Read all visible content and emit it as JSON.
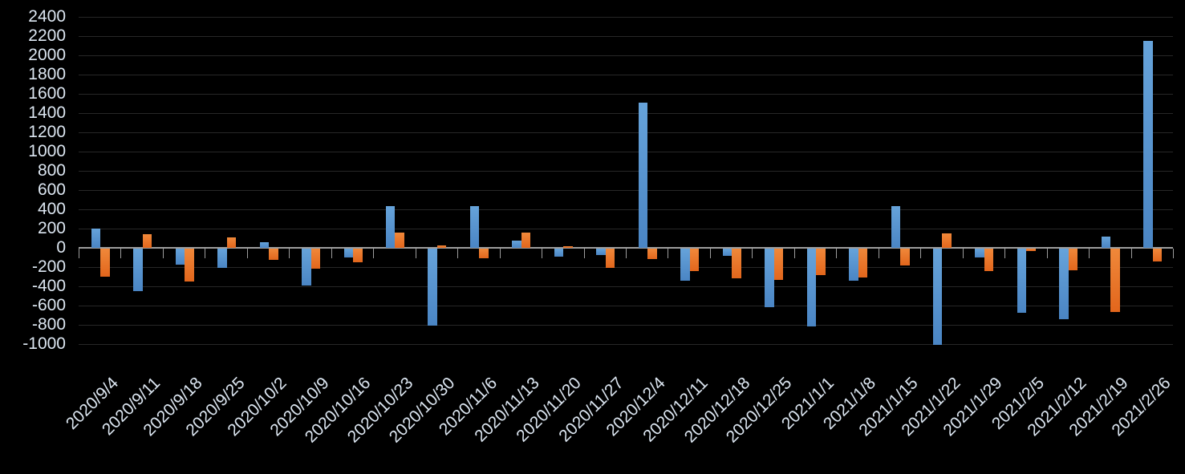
{
  "chart_data": {
    "type": "bar",
    "title": "",
    "xlabel": "",
    "ylabel": "",
    "background_color": "#000000",
    "grid": true,
    "legend": "none",
    "ylim": [
      -1000,
      2400
    ],
    "ytick_step": 200,
    "y_tick_labels": [
      "2400",
      "2200",
      "2000",
      "1800",
      "1600",
      "1400",
      "1200",
      "1000",
      "800",
      "600",
      "400",
      "200",
      "0",
      "-200",
      "-400",
      "-600",
      "-800",
      "-1000"
    ],
    "categories": [
      "2020/9/4",
      "2020/9/11",
      "2020/9/18",
      "2020/9/25",
      "2020/10/2",
      "2020/10/9",
      "2020/10/16",
      "2020/10/23",
      "2020/10/30",
      "2020/11/6",
      "2020/11/13",
      "2020/11/20",
      "2020/11/27",
      "2020/12/4",
      "2020/12/11",
      "2020/12/18",
      "2020/12/25",
      "2021/1/1",
      "2021/1/8",
      "2021/1/15",
      "2021/1/22",
      "2021/1/29",
      "2021/2/5",
      "2021/2/12",
      "2021/2/19",
      "2021/2/26"
    ],
    "series": [
      {
        "name": "blue",
        "color": "#5B9BD5",
        "values": [
          200,
          -440,
          -170,
          -200,
          55,
          -380,
          -95,
          430,
          -800,
          430,
          75,
          -85,
          -70,
          1510,
          -330,
          -75,
          -610,
          -810,
          -330,
          430,
          -1000,
          -90,
          -670,
          -730,
          115,
          2150
        ]
      },
      {
        "name": "orange",
        "color": "#ED7D31",
        "values": [
          -290,
          140,
          -340,
          105,
          -120,
          -205,
          -145,
          155,
          25,
          -100,
          160,
          20,
          -200,
          -105,
          -235,
          -310,
          -325,
          -275,
          -300,
          -175,
          150,
          -235,
          -25,
          -225,
          -660,
          -135
        ]
      }
    ],
    "axis_color": "#9d9d9d",
    "gridline_color": "#272727",
    "tick_label_color": "#dce6f1"
  }
}
